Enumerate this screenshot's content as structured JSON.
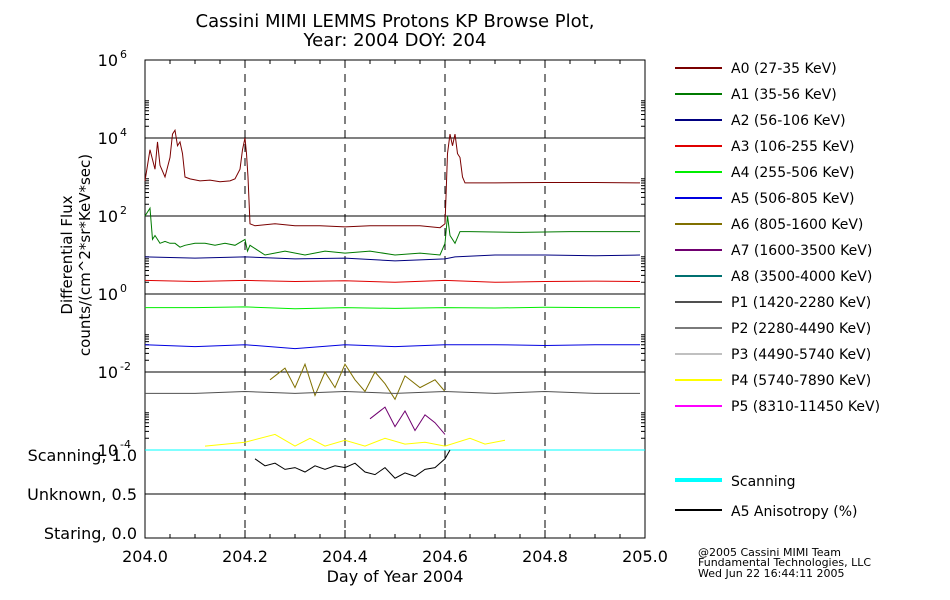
{
  "title": {
    "line1": "Cassini MIMI LEMMS Protons KP Browse Plot,",
    "line2": "Year: 2004 DOY: 204"
  },
  "colors": {
    "A0": "#7a0000",
    "A1": "#007a00",
    "A2": "#000080",
    "A3": "#e00000",
    "A4": "#00ee00",
    "A5": "#0000e0",
    "A6": "#807000",
    "A7": "#700070",
    "A8": "#007070",
    "P1": "#505050",
    "P2": "#7a7a7a",
    "P3": "#c0c0c0",
    "P4": "#ffff00",
    "P5": "#ff00ff",
    "scanning": "#00ffff",
    "anisotropy": "#000000"
  },
  "credits": {
    "line1": "@2005 Cassini MIMI Team",
    "line2": "Fundamental Technologies, LLC",
    "line3": "Wed Jun 22 16:44:11 2005"
  },
  "chart_data": [
    {
      "type": "line",
      "yscale": "log",
      "ylabel_line1": "Differential Flux",
      "ylabel_line2": "counts/(cm^2*sr*KeV*sec)",
      "xlim": [
        204.0,
        205.0
      ],
      "ylim_exp": [
        -4,
        6
      ],
      "ytick_exponents": [
        "-4",
        "-2",
        "0",
        "2",
        "4",
        "6"
      ],
      "grid_y": true,
      "dashed_x": [
        204.2,
        204.4,
        204.6,
        204.8
      ],
      "legend_position": "right",
      "series": [
        {
          "key": "A0",
          "name": "A0 (27-35 KeV)",
          "points": [
            [
              204.0,
              2.9
            ],
            [
              204.01,
              3.7
            ],
            [
              204.02,
              3.2
            ],
            [
              204.025,
              3.9
            ],
            [
              204.03,
              3.3
            ],
            [
              204.04,
              3.0
            ],
            [
              204.05,
              3.5
            ],
            [
              204.055,
              4.1
            ],
            [
              204.06,
              4.2
            ],
            [
              204.065,
              3.8
            ],
            [
              204.07,
              3.9
            ],
            [
              204.075,
              3.6
            ],
            [
              204.08,
              3.0
            ],
            [
              204.09,
              2.95
            ],
            [
              204.11,
              2.9
            ],
            [
              204.13,
              2.92
            ],
            [
              204.15,
              2.88
            ],
            [
              204.17,
              2.9
            ],
            [
              204.18,
              2.95
            ],
            [
              204.19,
              3.2
            ],
            [
              204.195,
              3.7
            ],
            [
              204.2,
              4.0
            ],
            [
              204.203,
              3.6
            ],
            [
              204.206,
              3.0
            ],
            [
              204.208,
              2.4
            ],
            [
              204.21,
              1.8
            ],
            [
              204.22,
              1.75
            ],
            [
              204.26,
              1.8
            ],
            [
              204.3,
              1.75
            ],
            [
              204.35,
              1.75
            ],
            [
              204.4,
              1.72
            ],
            [
              204.45,
              1.75
            ],
            [
              204.5,
              1.75
            ],
            [
              204.55,
              1.75
            ],
            [
              204.59,
              1.7
            ],
            [
              204.6,
              1.8
            ],
            [
              204.602,
              2.5
            ],
            [
              204.605,
              3.6
            ],
            [
              204.61,
              4.1
            ],
            [
              204.615,
              3.8
            ],
            [
              204.62,
              4.1
            ],
            [
              204.625,
              3.6
            ],
            [
              204.63,
              3.5
            ],
            [
              204.635,
              3.0
            ],
            [
              204.64,
              2.85
            ],
            [
              204.7,
              2.85
            ],
            [
              204.8,
              2.86
            ],
            [
              204.9,
              2.86
            ],
            [
              204.99,
              2.85
            ]
          ]
        },
        {
          "key": "A1",
          "name": "A1 (35-56 KeV)",
          "points": [
            [
              204.0,
              2.0
            ],
            [
              204.01,
              2.2
            ],
            [
              204.015,
              1.4
            ],
            [
              204.02,
              1.5
            ],
            [
              204.03,
              1.3
            ],
            [
              204.04,
              1.35
            ],
            [
              204.05,
              1.3
            ],
            [
              204.06,
              1.3
            ],
            [
              204.07,
              1.2
            ],
            [
              204.08,
              1.25
            ],
            [
              204.1,
              1.3
            ],
            [
              204.12,
              1.3
            ],
            [
              204.14,
              1.25
            ],
            [
              204.16,
              1.3
            ],
            [
              204.18,
              1.25
            ],
            [
              204.2,
              1.4
            ],
            [
              204.205,
              1.1
            ],
            [
              204.21,
              1.25
            ],
            [
              204.24,
              1.0
            ],
            [
              204.28,
              1.1
            ],
            [
              204.32,
              1.0
            ],
            [
              204.36,
              1.1
            ],
            [
              204.4,
              1.05
            ],
            [
              204.45,
              1.1
            ],
            [
              204.5,
              1.0
            ],
            [
              204.55,
              1.05
            ],
            [
              204.59,
              1.0
            ],
            [
              204.6,
              1.3
            ],
            [
              204.605,
              2.0
            ],
            [
              204.61,
              1.5
            ],
            [
              204.62,
              1.3
            ],
            [
              204.63,
              1.6
            ],
            [
              204.65,
              1.6
            ],
            [
              204.75,
              1.58
            ],
            [
              204.85,
              1.6
            ],
            [
              204.99,
              1.6
            ]
          ]
        },
        {
          "key": "A2",
          "name": "A2 (56-106 KeV)",
          "points": [
            [
              204.0,
              0.95
            ],
            [
              204.1,
              0.92
            ],
            [
              204.2,
              0.95
            ],
            [
              204.3,
              0.9
            ],
            [
              204.4,
              0.92
            ],
            [
              204.5,
              0.85
            ],
            [
              204.6,
              0.9
            ],
            [
              204.62,
              0.95
            ],
            [
              204.7,
              1.0
            ],
            [
              204.8,
              1.0
            ],
            [
              204.9,
              0.98
            ],
            [
              204.99,
              1.0
            ]
          ]
        },
        {
          "key": "A3",
          "name": "A3 (106-255 KeV)",
          "points": [
            [
              204.0,
              0.35
            ],
            [
              204.1,
              0.32
            ],
            [
              204.2,
              0.35
            ],
            [
              204.3,
              0.32
            ],
            [
              204.4,
              0.34
            ],
            [
              204.5,
              0.3
            ],
            [
              204.6,
              0.35
            ],
            [
              204.7,
              0.3
            ],
            [
              204.8,
              0.32
            ],
            [
              204.9,
              0.33
            ],
            [
              204.99,
              0.32
            ]
          ]
        },
        {
          "key": "A4",
          "name": "A4 (255-506 KeV)",
          "points": [
            [
              204.0,
              -0.35
            ],
            [
              204.1,
              -0.35
            ],
            [
              204.2,
              -0.33
            ],
            [
              204.3,
              -0.38
            ],
            [
              204.4,
              -0.35
            ],
            [
              204.5,
              -0.37
            ],
            [
              204.6,
              -0.35
            ],
            [
              204.7,
              -0.36
            ],
            [
              204.8,
              -0.34
            ],
            [
              204.9,
              -0.35
            ],
            [
              204.99,
              -0.35
            ]
          ]
        },
        {
          "key": "A5",
          "name": "A5 (506-805 KeV)",
          "points": [
            [
              204.0,
              -1.3
            ],
            [
              204.1,
              -1.35
            ],
            [
              204.2,
              -1.3
            ],
            [
              204.3,
              -1.4
            ],
            [
              204.4,
              -1.3
            ],
            [
              204.5,
              -1.35
            ],
            [
              204.6,
              -1.3
            ],
            [
              204.7,
              -1.3
            ],
            [
              204.8,
              -1.32
            ],
            [
              204.9,
              -1.3
            ],
            [
              204.99,
              -1.3
            ]
          ]
        },
        {
          "key": "A6",
          "name": "A6 (805-1600 KeV)",
          "points": [
            [
              204.25,
              -2.2
            ],
            [
              204.28,
              -1.9
            ],
            [
              204.3,
              -2.4
            ],
            [
              204.32,
              -1.8
            ],
            [
              204.34,
              -2.6
            ],
            [
              204.36,
              -2.0
            ],
            [
              204.38,
              -2.4
            ],
            [
              204.4,
              -1.8
            ],
            [
              204.42,
              -2.2
            ],
            [
              204.44,
              -2.5
            ],
            [
              204.46,
              -2.0
            ],
            [
              204.48,
              -2.3
            ],
            [
              204.5,
              -2.7
            ],
            [
              204.52,
              -2.1
            ],
            [
              204.55,
              -2.4
            ],
            [
              204.58,
              -2.2
            ],
            [
              204.6,
              -2.5
            ]
          ]
        },
        {
          "key": "A7",
          "name": "A7 (1600-3500 KeV)",
          "points": [
            [
              204.45,
              -3.2
            ],
            [
              204.48,
              -2.9
            ],
            [
              204.5,
              -3.4
            ],
            [
              204.52,
              -3.0
            ],
            [
              204.54,
              -3.5
            ],
            [
              204.56,
              -3.1
            ],
            [
              204.58,
              -3.3
            ],
            [
              204.6,
              -3.6
            ]
          ]
        },
        {
          "key": "A8",
          "name": "A8 (3500-4000 KeV)",
          "points": []
        },
        {
          "key": "P1",
          "name": "P1 (1420-2280 KeV)",
          "points": [
            [
              204.0,
              -2.55
            ],
            [
              204.1,
              -2.55
            ],
            [
              204.2,
              -2.5
            ],
            [
              204.3,
              -2.55
            ],
            [
              204.4,
              -2.5
            ],
            [
              204.5,
              -2.55
            ],
            [
              204.6,
              -2.5
            ],
            [
              204.7,
              -2.55
            ],
            [
              204.8,
              -2.5
            ],
            [
              204.9,
              -2.55
            ],
            [
              204.99,
              -2.55
            ]
          ]
        },
        {
          "key": "P2",
          "name": "P2 (2280-4490 KeV)",
          "points": []
        },
        {
          "key": "P3",
          "name": "P3 (4490-5740 KeV)",
          "points": []
        },
        {
          "key": "P4",
          "name": "P4 (5740-7890 KeV)",
          "points": [
            [
              204.12,
              -3.9
            ],
            [
              204.2,
              -3.8
            ],
            [
              204.26,
              -3.6
            ],
            [
              204.3,
              -3.9
            ],
            [
              204.33,
              -3.7
            ],
            [
              204.36,
              -3.9
            ],
            [
              204.4,
              -3.75
            ],
            [
              204.44,
              -3.9
            ],
            [
              204.48,
              -3.7
            ],
            [
              204.52,
              -3.85
            ],
            [
              204.56,
              -3.8
            ],
            [
              204.6,
              -3.9
            ],
            [
              204.65,
              -3.7
            ],
            [
              204.68,
              -3.85
            ],
            [
              204.72,
              -3.75
            ]
          ]
        },
        {
          "key": "P5",
          "name": "P5 (8310-11450 KeV)",
          "points": []
        }
      ]
    },
    {
      "type": "line",
      "ytick_labels": [
        "Scanning, 1.0",
        "Unknown, 0.5",
        "Staring, 0.0"
      ],
      "yvalues": [
        1.0,
        0.5,
        0.0
      ],
      "ylim": [
        0.0,
        1.0
      ],
      "xlim": [
        204.0,
        205.0
      ],
      "xtick_labels": [
        "204.0",
        "204.2",
        "204.4",
        "204.6",
        "204.8",
        "205.0"
      ],
      "xlabel": "Day of Year 2004",
      "series": [
        {
          "key": "scanning",
          "name": "Scanning",
          "points": [
            [
              204.0,
              1.0
            ],
            [
              205.0,
              1.0
            ]
          ]
        },
        {
          "key": "anisotropy",
          "name": "A5 Anisotropy (%)",
          "points": [
            [
              204.22,
              0.9
            ],
            [
              204.24,
              0.82
            ],
            [
              204.26,
              0.85
            ],
            [
              204.28,
              0.78
            ],
            [
              204.3,
              0.8
            ],
            [
              204.32,
              0.75
            ],
            [
              204.34,
              0.82
            ],
            [
              204.36,
              0.78
            ],
            [
              204.38,
              0.82
            ],
            [
              204.4,
              0.8
            ],
            [
              204.42,
              0.85
            ],
            [
              204.44,
              0.75
            ],
            [
              204.46,
              0.72
            ],
            [
              204.48,
              0.8
            ],
            [
              204.5,
              0.68
            ],
            [
              204.52,
              0.74
            ],
            [
              204.54,
              0.7
            ],
            [
              204.56,
              0.78
            ],
            [
              204.58,
              0.8
            ],
            [
              204.6,
              0.9
            ],
            [
              204.61,
              1.0
            ]
          ]
        }
      ]
    }
  ]
}
